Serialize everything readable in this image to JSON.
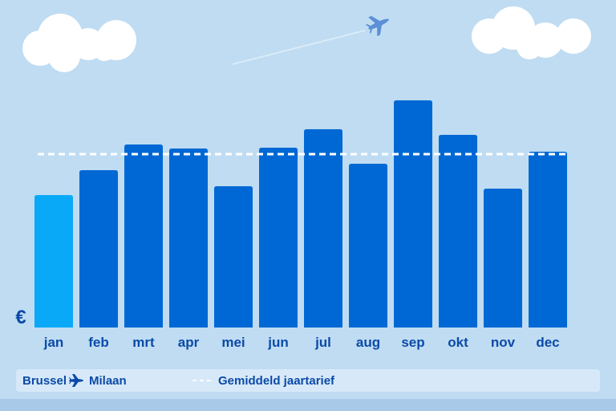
{
  "chart_data": {
    "type": "bar",
    "categories": [
      "jan",
      "feb",
      "mrt",
      "apr",
      "mei",
      "jun",
      "jul",
      "aug",
      "sep",
      "okt",
      "nov",
      "dec"
    ],
    "values": [
      165,
      196,
      228,
      223,
      176,
      224,
      247,
      204,
      283,
      240,
      173,
      219
    ],
    "colors": [
      "#0aa9f7",
      "#0068d4",
      "#0068d4",
      "#0068d4",
      "#0068d4",
      "#0068d4",
      "#0068d4",
      "#0068d4",
      "#0068d4",
      "#0068d4",
      "#0068d4",
      "#0068d4"
    ],
    "ylim": [
      0,
      300
    ],
    "currency_symbol": "€",
    "average": {
      "value": 216,
      "label": "Gemiddeld jaartarief",
      "color": "#ffffff"
    },
    "legend": {
      "origin": "Brussel",
      "destination": "Milaan"
    }
  }
}
